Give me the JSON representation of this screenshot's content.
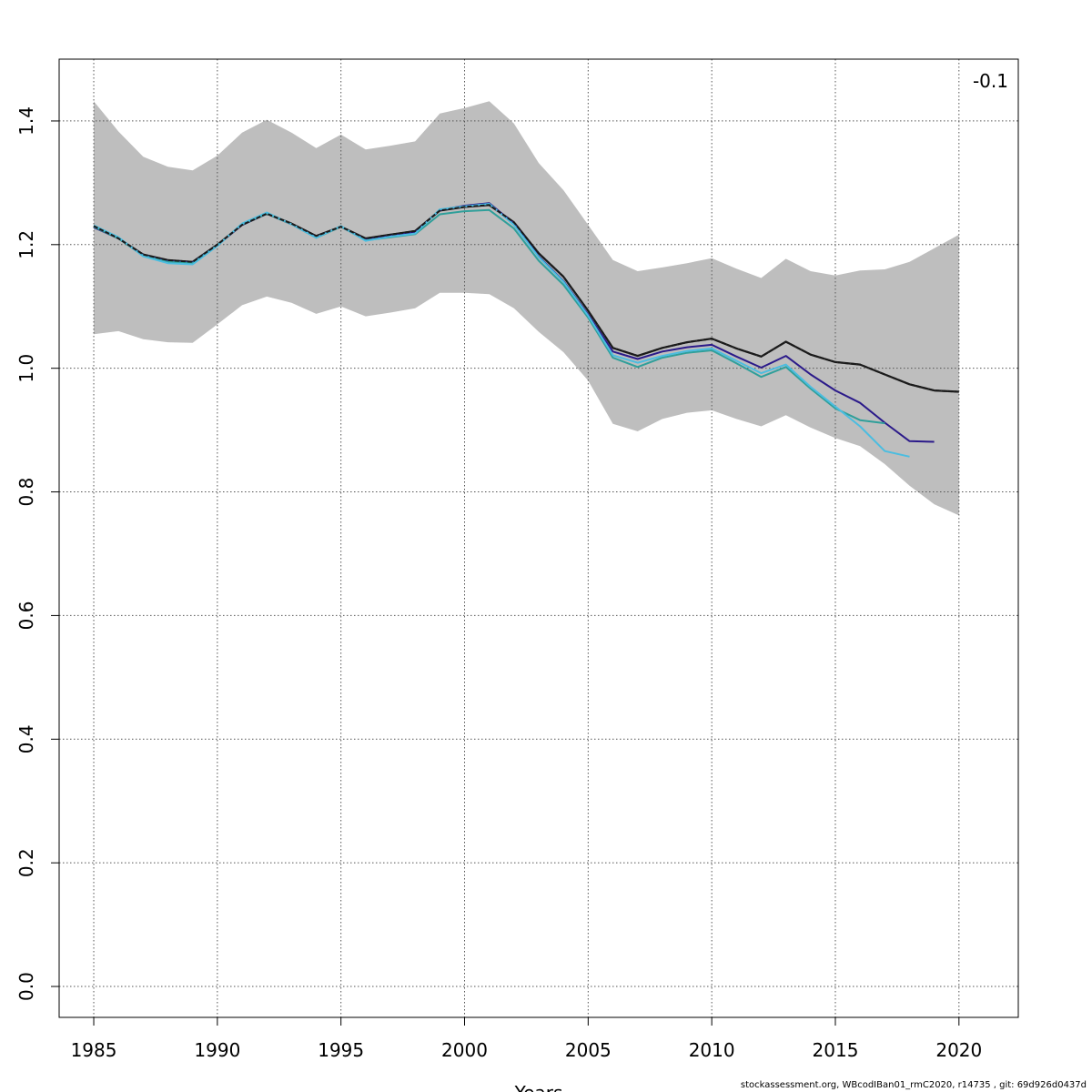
{
  "chart_data": {
    "type": "line",
    "title": "",
    "xlabel": "Years",
    "ylabel": "",
    "xlim": [
      1983.6,
      2022.4
    ],
    "ylim": [
      -0.05,
      1.5
    ],
    "x_ticks": [
      1985,
      1990,
      1995,
      2000,
      2005,
      2010,
      2015,
      2020
    ],
    "y_ticks": [
      0.0,
      0.2,
      0.4,
      0.6,
      0.8,
      1.0,
      1.2,
      1.4
    ],
    "x_tick_labels": [
      "1985",
      "1990",
      "1995",
      "2000",
      "2005",
      "2010",
      "2015",
      "2020"
    ],
    "y_tick_labels": [
      "0.0",
      "0.2",
      "0.4",
      "0.6",
      "0.8",
      "1.0",
      "1.2",
      "1.4"
    ],
    "grid": true,
    "corner_label": "-0.1",
    "band": {
      "x": [
        1985,
        1986,
        1987,
        1988,
        1989,
        1990,
        1991,
        1992,
        1993,
        1994,
        1995,
        1996,
        1997,
        1998,
        1999,
        2000,
        2001,
        2002,
        2003,
        2004,
        2005,
        2006,
        2007,
        2008,
        2009,
        2010,
        2011,
        2012,
        2013,
        2014,
        2015,
        2016,
        2017,
        2018,
        2019,
        2020
      ],
      "upper": [
        1.432,
        1.383,
        1.342,
        1.326,
        1.32,
        1.344,
        1.381,
        1.402,
        1.381,
        1.356,
        1.378,
        1.354,
        1.36,
        1.367,
        1.412,
        1.421,
        1.432,
        1.396,
        1.332,
        1.288,
        1.232,
        1.175,
        1.157,
        1.163,
        1.17,
        1.178,
        1.161,
        1.146,
        1.177,
        1.157,
        1.15,
        1.158,
        1.16,
        1.172,
        1.194,
        1.216
      ],
      "lower": [
        1.055,
        1.06,
        1.047,
        1.042,
        1.041,
        1.071,
        1.102,
        1.116,
        1.106,
        1.088,
        1.1,
        1.084,
        1.09,
        1.097,
        1.122,
        1.122,
        1.12,
        1.097,
        1.059,
        1.026,
        0.98,
        0.91,
        0.898,
        0.918,
        0.928,
        0.932,
        0.918,
        0.906,
        0.924,
        0.904,
        0.887,
        0.874,
        0.845,
        0.81,
        0.78,
        0.762
      ]
    },
    "series": [
      {
        "color": "#1a1a1a",
        "dashed": true,
        "x": [
          1985,
          1986,
          1987,
          1988,
          1989,
          1990,
          1991,
          1992,
          1993,
          1994,
          1995,
          1996,
          1997,
          1998,
          1999,
          2000,
          2001,
          2002,
          2003,
          2004,
          2005,
          2006,
          2007,
          2008,
          2009,
          2010,
          2011,
          2012,
          2013,
          2014,
          2015,
          2016,
          2017,
          2018,
          2019,
          2020
        ],
        "values": [
          1.23,
          1.21,
          1.184,
          1.175,
          1.172,
          1.2,
          1.232,
          1.25,
          1.234,
          1.214,
          1.229,
          1.21,
          1.216,
          1.222,
          1.255,
          1.261,
          1.264,
          1.236,
          1.186,
          1.148,
          1.093,
          1.033,
          1.02,
          1.033,
          1.042,
          1.048,
          1.032,
          1.019,
          1.043,
          1.022,
          1.01,
          1.006,
          0.99,
          0.974,
          0.964,
          0.962
        ]
      },
      {
        "color": "#2b1a8a",
        "dashed": false,
        "x": [
          1985,
          1986,
          1987,
          1988,
          1989,
          1990,
          1991,
          1992,
          1993,
          1994,
          1995,
          1996,
          1997,
          1998,
          1999,
          2000,
          2001,
          2002,
          2003,
          2004,
          2005,
          2006,
          2007,
          2008,
          2009,
          2010,
          2011,
          2012,
          2013,
          2014,
          2015,
          2016,
          2017,
          2018,
          2019
        ],
        "values": [
          1.228,
          1.21,
          1.183,
          1.173,
          1.171,
          1.199,
          1.232,
          1.25,
          1.233,
          1.212,
          1.229,
          1.208,
          1.214,
          1.22,
          1.256,
          1.263,
          1.267,
          1.234,
          1.181,
          1.141,
          1.087,
          1.027,
          1.015,
          1.027,
          1.034,
          1.038,
          1.019,
          1.001,
          1.02,
          0.99,
          0.964,
          0.944,
          0.912,
          0.882,
          0.881
        ]
      },
      {
        "color": "#2f9f9a",
        "dashed": false,
        "x": [
          1985,
          1986,
          1987,
          1988,
          1989,
          1990,
          1991,
          1992,
          1993,
          1994,
          1995,
          1996,
          1997,
          1998,
          1999,
          2000,
          2001,
          2002,
          2003,
          2004,
          2005,
          2006,
          2007,
          2008,
          2009,
          2010,
          2011,
          2012,
          2013,
          2014,
          2015,
          2016,
          2017
        ],
        "values": [
          1.229,
          1.21,
          1.182,
          1.172,
          1.17,
          1.199,
          1.233,
          1.25,
          1.233,
          1.211,
          1.229,
          1.207,
          1.212,
          1.217,
          1.249,
          1.254,
          1.256,
          1.226,
          1.174,
          1.135,
          1.082,
          1.017,
          1.002,
          1.017,
          1.025,
          1.029,
          1.008,
          0.986,
          1.002,
          0.967,
          0.935,
          0.916,
          0.911
        ]
      },
      {
        "color": "#4bbde0",
        "dashed": false,
        "x": [
          1985,
          1986,
          1987,
          1988,
          1989,
          1990,
          1991,
          1992,
          1993,
          1994,
          1995,
          1996,
          1997,
          1998,
          1999,
          2000,
          2001,
          2002,
          2003,
          2004,
          2005,
          2006,
          2007,
          2008,
          2009,
          2010,
          2011,
          2012,
          2013,
          2014,
          2015,
          2016,
          2017,
          2018
        ],
        "values": [
          1.231,
          1.212,
          1.181,
          1.17,
          1.168,
          1.198,
          1.234,
          1.252,
          1.233,
          1.211,
          1.23,
          1.206,
          1.213,
          1.218,
          1.257,
          1.262,
          1.266,
          1.232,
          1.18,
          1.14,
          1.085,
          1.021,
          1.009,
          1.02,
          1.028,
          1.032,
          1.012,
          0.992,
          1.006,
          0.97,
          0.938,
          0.906,
          0.866,
          0.857
        ]
      }
    ]
  },
  "footer": "stockassessment.org, WBcodIBan01_rmC2020, r14735 , git: 69d926d0437d"
}
